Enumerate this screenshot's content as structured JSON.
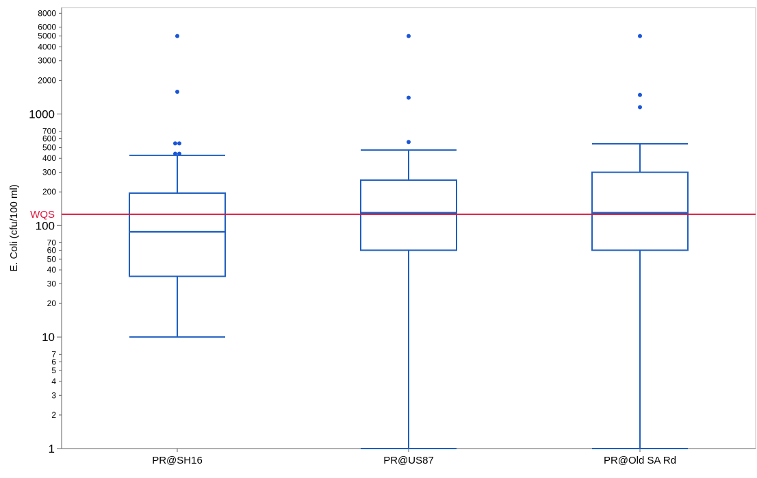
{
  "chart_data": {
    "type": "box",
    "ylabel": "E. Coli (cfu/100 ml)",
    "xlabel": "",
    "yscale": "log",
    "ylim": [
      1,
      9000
    ],
    "yticks_major": [
      "1",
      "10",
      "100",
      "1000"
    ],
    "yticks_minor": [
      "2",
      "3",
      "4",
      "5",
      "6",
      "7",
      "20",
      "30",
      "40",
      "50",
      "60",
      "70",
      "200",
      "300",
      "400",
      "500",
      "600",
      "700",
      "2000",
      "3000",
      "4000",
      "5000",
      "6000",
      "8000"
    ],
    "grid": false,
    "reference_line": {
      "label": "WQS",
      "value": 126,
      "color": "#dc143c"
    },
    "box_color": "#1f5fbf",
    "outlier_color": "#1a56d6",
    "categories": [
      "PR@SH16",
      "PR@US87",
      "PR@Old SA Rd"
    ],
    "boxes": [
      {
        "name": "PR@SH16",
        "whisker_low": 10,
        "q1": 35,
        "median": 88,
        "q3": 195,
        "whisker_high": 425,
        "outliers": [
          5000,
          1580,
          545,
          545,
          440,
          440
        ]
      },
      {
        "name": "PR@US87",
        "whisker_low": 1,
        "q1": 60,
        "median": 130,
        "q3": 255,
        "whisker_high": 475,
        "outliers": [
          5000,
          1400,
          560
        ]
      },
      {
        "name": "PR@Old SA Rd",
        "whisker_low": 1,
        "q1": 60,
        "median": 130,
        "q3": 300,
        "whisker_high": 540,
        "outliers": [
          5000,
          1480,
          1150
        ]
      }
    ]
  }
}
